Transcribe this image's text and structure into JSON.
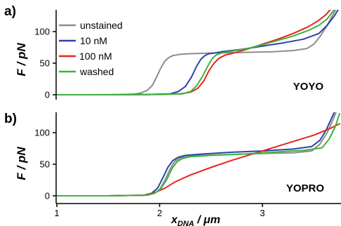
{
  "chart_data": [
    {
      "type": "line",
      "panel_label": "a)",
      "corner_label": "YOYO",
      "ylabel": "F / pN",
      "xlabel": {
        "main": "x",
        "subscript": "DNA",
        "unit": " / μm"
      },
      "xlim": [
        1,
        3.75
      ],
      "ylim": [
        0,
        135
      ],
      "yticks": [
        0,
        50,
        100
      ],
      "xticks": [
        1,
        2,
        3
      ],
      "legend": {
        "position": "top-left"
      },
      "series": [
        {
          "name": "unstained",
          "color": "#8c8c8c",
          "x": [
            1.0,
            1.3,
            1.6,
            1.75,
            1.82,
            1.88,
            1.93,
            1.97,
            2.01,
            2.05,
            2.09,
            2.13,
            2.2,
            2.3,
            2.5,
            2.8,
            3.1,
            3.3,
            3.43,
            3.5,
            3.56,
            3.62,
            3.67,
            3.72
          ],
          "y": [
            0,
            0,
            0.3,
            1,
            3,
            7,
            15,
            28,
            42,
            53,
            59,
            62,
            64,
            65,
            66,
            67,
            68,
            70,
            73,
            80,
            92,
            107,
            122,
            137
          ]
        },
        {
          "name": "10 nM",
          "color": "#2a44a8",
          "x": [
            1.0,
            1.5,
            1.9,
            2.1,
            2.18,
            2.25,
            2.31,
            2.36,
            2.4,
            2.44,
            2.48,
            2.53,
            2.6,
            2.8,
            3.0,
            3.2,
            3.4,
            3.55,
            3.63,
            3.7,
            3.75
          ],
          "y": [
            0,
            0,
            0.5,
            1.5,
            5,
            13,
            28,
            45,
            56,
            62,
            65,
            66,
            68,
            72,
            77,
            82,
            88,
            97,
            110,
            125,
            138
          ]
        },
        {
          "name": "100 nM",
          "color": "#e52421",
          "x": [
            1.0,
            1.5,
            1.9,
            2.2,
            2.3,
            2.37,
            2.43,
            2.48,
            2.53,
            2.58,
            2.64,
            2.72,
            2.85,
            3.0,
            3.15,
            3.3,
            3.45,
            3.55,
            3.62,
            3.67
          ],
          "y": [
            0,
            0,
            0.5,
            1.5,
            4,
            10,
            22,
            38,
            50,
            58,
            63,
            66,
            72,
            80,
            88,
            97,
            108,
            118,
            127,
            137
          ]
        },
        {
          "name": "washed",
          "color": "#3cb43c",
          "x": [
            1.0,
            1.5,
            2.0,
            2.22,
            2.3,
            2.36,
            2.42,
            2.47,
            2.51,
            2.55,
            2.6,
            2.7,
            2.85,
            3.0,
            3.15,
            3.3,
            3.45,
            3.55,
            3.63,
            3.7
          ],
          "y": [
            0,
            0,
            0.5,
            1.5,
            5,
            14,
            30,
            46,
            57,
            63,
            66,
            69,
            73,
            79,
            86,
            93,
            102,
            110,
            120,
            135
          ]
        }
      ]
    },
    {
      "type": "line",
      "panel_label": "b)",
      "corner_label": "YOPRO",
      "ylabel": "F / pN",
      "xlim": [
        1,
        3.75
      ],
      "ylim": [
        0,
        135
      ],
      "yticks": [
        0,
        50,
        100
      ],
      "xticks": [
        1,
        2,
        3
      ],
      "series": [
        {
          "name": "unstained",
          "color": "#8c8c8c",
          "x": [
            1.0,
            1.5,
            1.85,
            1.95,
            2.0,
            2.05,
            2.1,
            2.15,
            2.2,
            2.3,
            2.6,
            3.0,
            3.3,
            3.48,
            3.56,
            3.63,
            3.68,
            3.72
          ],
          "y": [
            0,
            0,
            1,
            4,
            10,
            24,
            42,
            55,
            60,
            63,
            65,
            67,
            68,
            71,
            82,
            100,
            118,
            134
          ]
        },
        {
          "name": "10 nM",
          "color": "#2a44a8",
          "x": [
            1.0,
            1.5,
            1.85,
            1.92,
            1.98,
            2.03,
            2.08,
            2.13,
            2.18,
            2.25,
            2.4,
            2.7,
            3.0,
            3.3,
            3.48,
            3.56,
            3.62,
            3.67,
            3.71
          ],
          "y": [
            0,
            0,
            1,
            4,
            12,
            28,
            45,
            56,
            61,
            64,
            66,
            69,
            71,
            74,
            78,
            88,
            104,
            122,
            136
          ]
        },
        {
          "name": "100 nM",
          "color": "#e52421",
          "x": [
            1.0,
            1.5,
            1.85,
            1.95,
            2.05,
            2.15,
            2.3,
            2.5,
            2.7,
            2.9,
            3.1,
            3.3,
            3.5,
            3.65,
            3.75
          ],
          "y": [
            0,
            0,
            1,
            5,
            12,
            22,
            33,
            45,
            56,
            66,
            76,
            86,
            96,
            106,
            114
          ]
        },
        {
          "name": "washed",
          "color": "#3cb43c",
          "x": [
            1.0,
            1.5,
            1.88,
            1.95,
            2.01,
            2.07,
            2.12,
            2.17,
            2.22,
            2.3,
            2.5,
            2.8,
            3.1,
            3.4,
            3.58,
            3.65,
            3.71,
            3.75
          ],
          "y": [
            0,
            0,
            1,
            4,
            11,
            26,
            43,
            54,
            59,
            62,
            64,
            66,
            69,
            72,
            76,
            90,
            110,
            130
          ]
        }
      ]
    }
  ]
}
